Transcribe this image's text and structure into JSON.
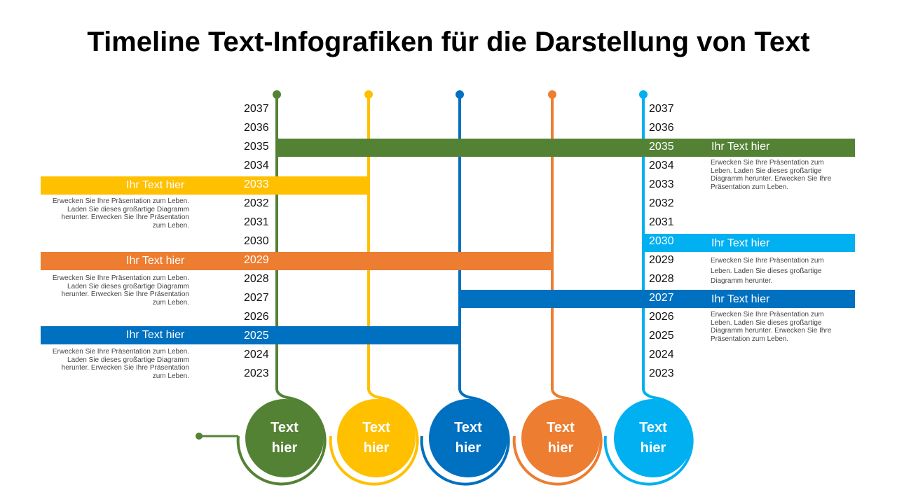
{
  "title": "Timeline Text-Infografiken für die Darstellung von Text",
  "colors": {
    "green": "#548235",
    "yellow": "#FFC000",
    "blue": "#0070C0",
    "orange": "#ED7D31",
    "cyan": "#00B0F0"
  },
  "years_left": [
    "2037",
    "2036",
    "2035",
    "2034",
    "2033",
    "2032",
    "2031",
    "2030",
    "2029",
    "2028",
    "2027",
    "2026",
    "2025",
    "2024",
    "2023"
  ],
  "years_right": [
    "2037",
    "2036",
    "2035",
    "2034",
    "2033",
    "2032",
    "2031",
    "2030",
    "2029",
    "2028",
    "2027",
    "2026",
    "2025",
    "2024",
    "2023"
  ],
  "left_items": [
    {
      "year": "2033",
      "label": "Ihr Text hier",
      "color": "yellow",
      "desc": "Erwecken Sie Ihre Präsentation zum Leben. Laden Sie dieses großartige Diagramm herunter. Erwecken Sie Ihre Präsentation zum Leben."
    },
    {
      "year": "2029",
      "label": "Ihr Text hier",
      "color": "orange",
      "desc": "Erwecken Sie Ihre Präsentation zum Leben. Laden Sie dieses großartige Diagramm herunter. Erwecken Sie Ihre Präsentation zum Leben."
    },
    {
      "year": "2025",
      "label": "Ihr Text hier",
      "color": "blue",
      "desc": "Erwecken Sie Ihre Präsentation zum Leben. Laden Sie dieses großartige Diagramm herunter. Erwecken Sie Ihre Präsentation zum Leben."
    }
  ],
  "right_items": [
    {
      "year": "2035",
      "label": "Ihr Text hier",
      "color": "green",
      "desc": "Erwecken Sie Ihre Präsentation zum Leben. Laden Sie dieses großartige Diagramm herunter. Erwecken Sie Ihre Präsentation zum Leben."
    },
    {
      "year": "2030",
      "label": "Ihr Text hier",
      "color": "cyan",
      "desc": "Erwecken Sie Ihre Präsentation zum Leben. Laden Sie dieses großartige Diagramm herunter."
    },
    {
      "year": "2027",
      "label": "Ihr Text hier",
      "color": "blue",
      "desc": "Erwecken Sie Ihre Präsentation zum Leben. Laden Sie dieses großartige Diagramm herunter. Erwecken Sie Ihre Präsentation zum Leben."
    }
  ],
  "circles": [
    {
      "label": "Text hier",
      "color": "green"
    },
    {
      "label": "Text hier",
      "color": "yellow"
    },
    {
      "label": "Text hier",
      "color": "blue"
    },
    {
      "label": "Text hier",
      "color": "orange"
    },
    {
      "label": "Text hier",
      "color": "cyan"
    }
  ]
}
